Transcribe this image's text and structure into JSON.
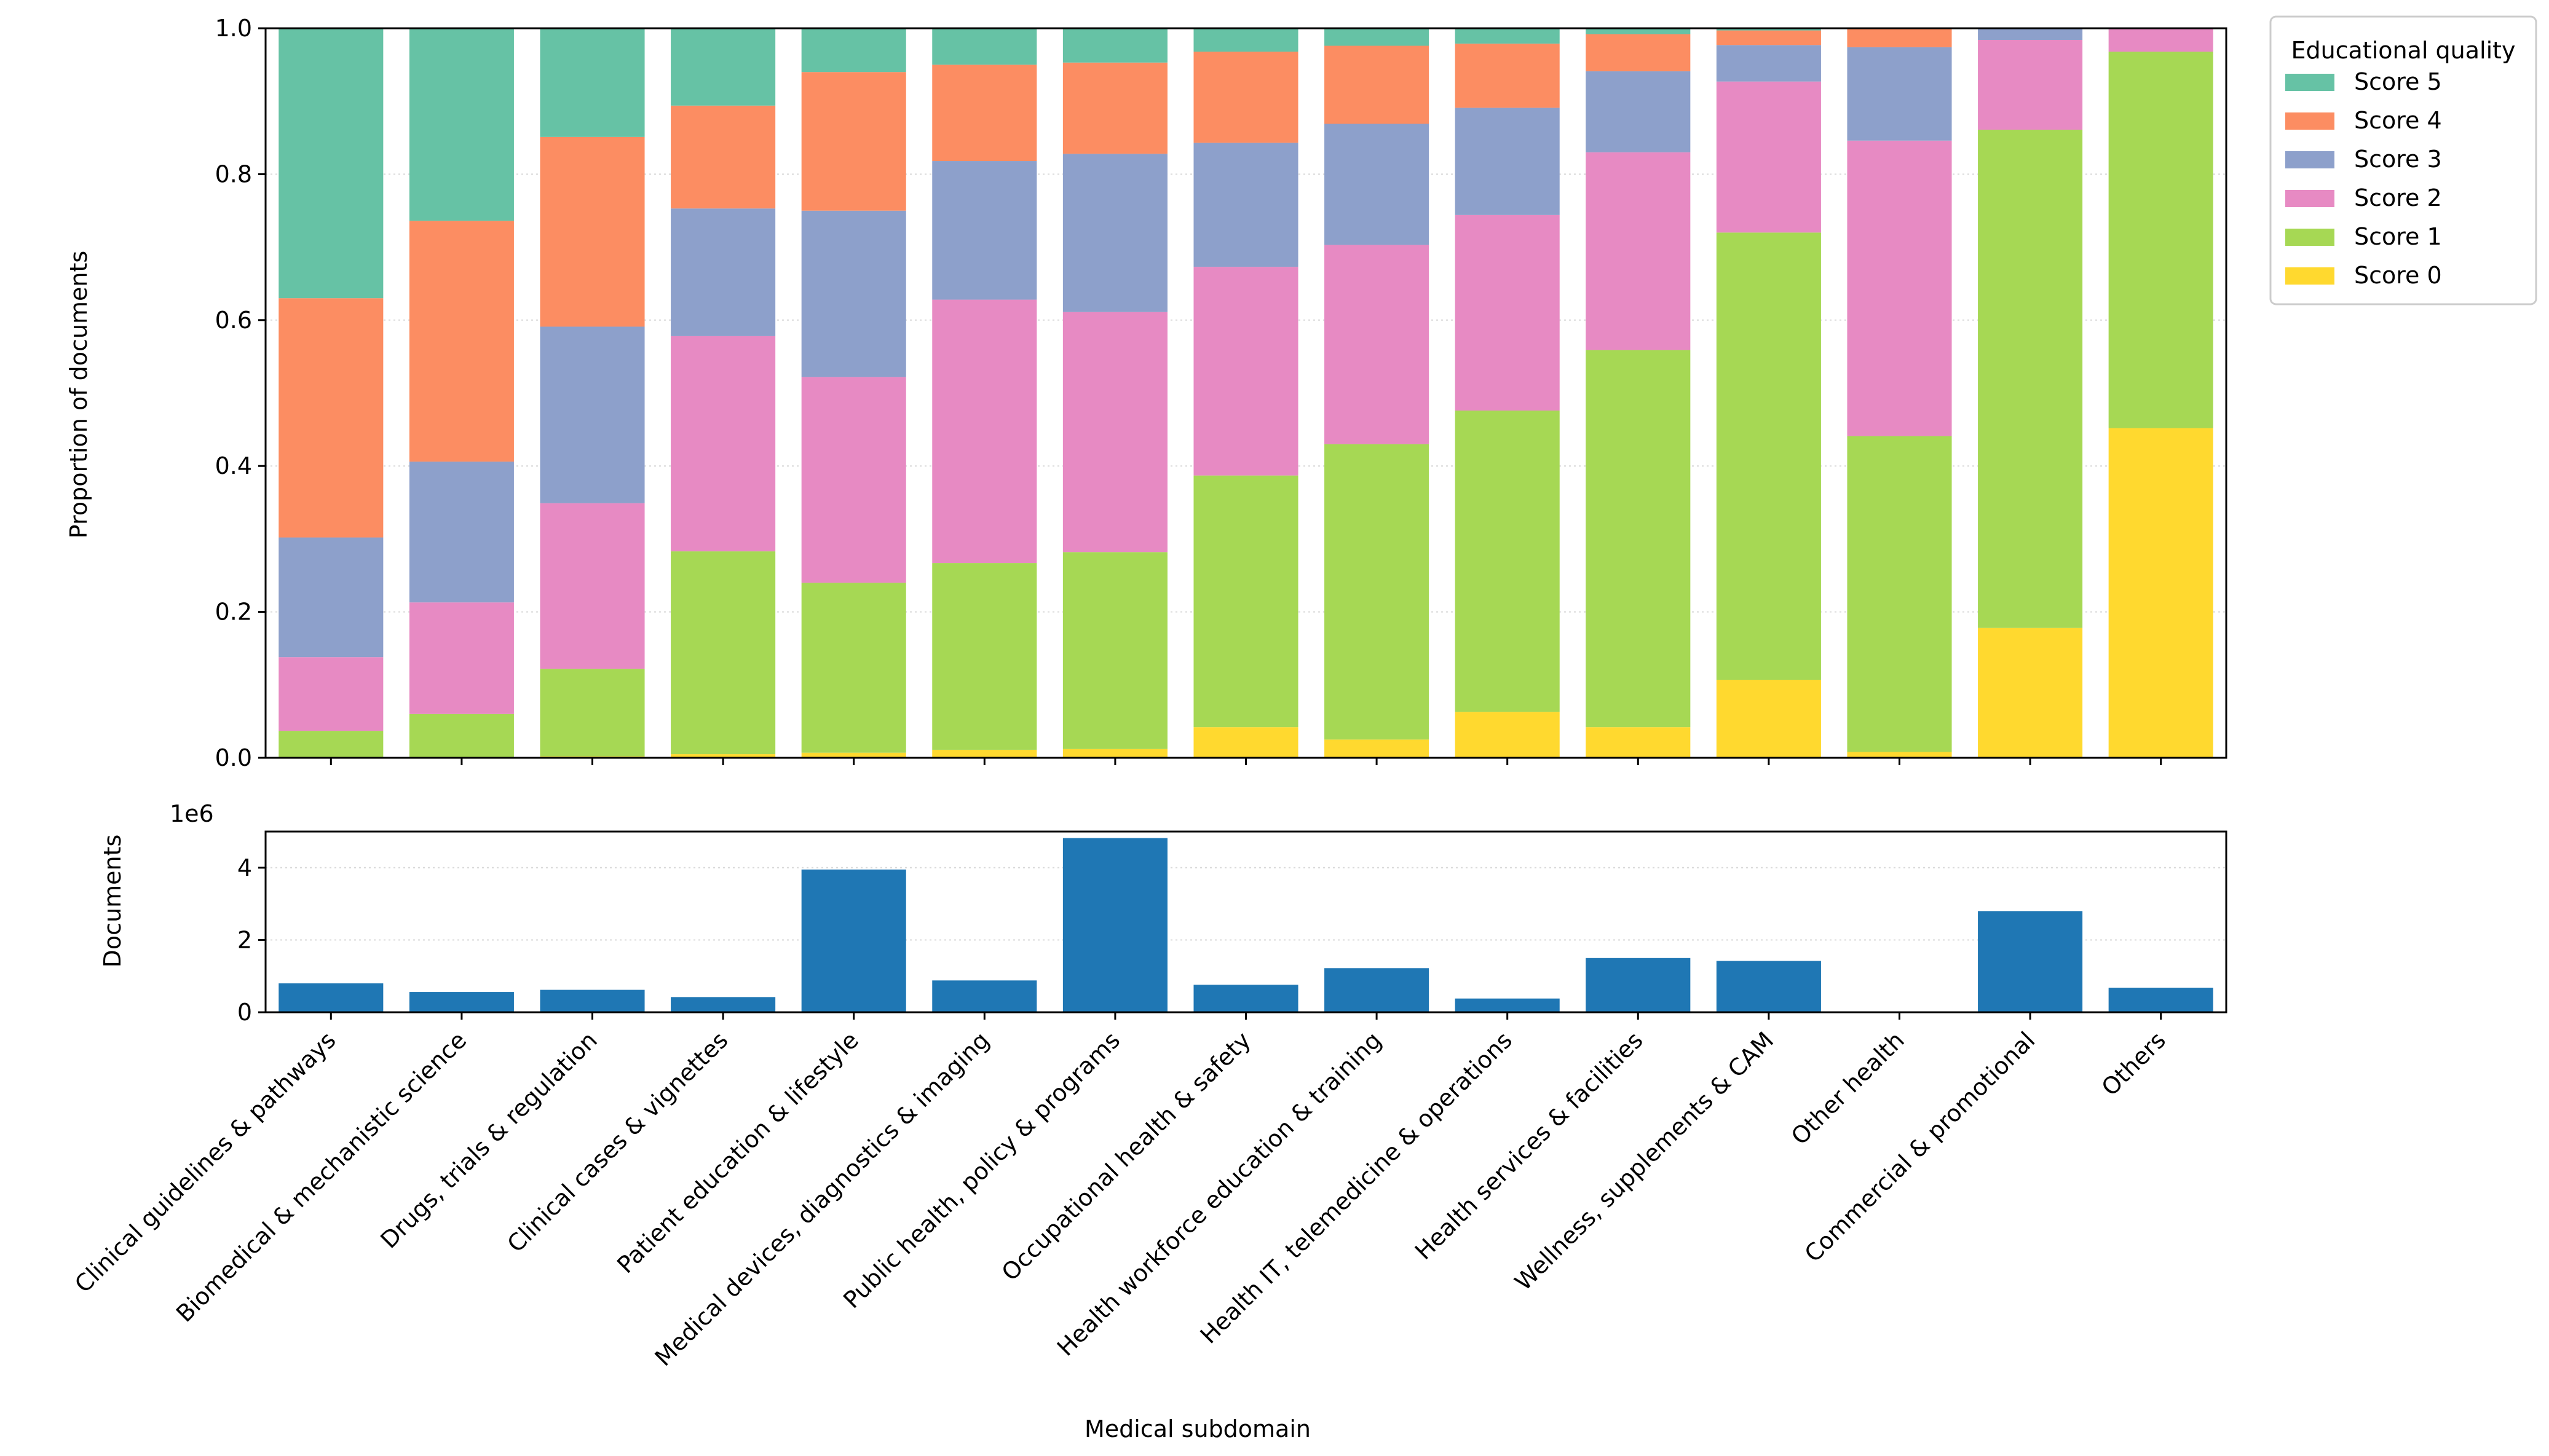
{
  "chart_data": [
    {
      "type": "bar",
      "stacked": true,
      "categories": [
        "Clinical guidelines & pathways",
        "Biomedical & mechanistic science",
        "Drugs, trials & regulation",
        "Clinical cases & vignettes",
        "Patient education & lifestyle",
        "Medical devices, diagnostics & imaging",
        "Public health, policy & programs",
        "Occupational health & safety",
        "Health workforce education & training",
        "Health IT, telemedicine & operations",
        "Health services & facilities",
        "Wellness, supplements & CAM",
        "Other health",
        "Commercial & promotional",
        "Others"
      ],
      "series": [
        {
          "name": "Score 0",
          "color": "#ffd92f",
          "values": [
            0.0,
            0.0,
            0.002,
            0.005,
            0.007,
            0.011,
            0.012,
            0.042,
            0.025,
            0.063,
            0.042,
            0.107,
            0.008,
            0.178,
            0.452
          ]
        },
        {
          "name": "Score 1",
          "color": "#a6d854",
          "values": [
            0.037,
            0.06,
            0.12,
            0.278,
            0.233,
            0.256,
            0.27,
            0.345,
            0.405,
            0.413,
            0.517,
            0.613,
            0.433,
            0.683,
            0.516
          ]
        },
        {
          "name": "Score 2",
          "color": "#e78ac3",
          "values": [
            0.101,
            0.153,
            0.227,
            0.295,
            0.282,
            0.361,
            0.329,
            0.286,
            0.273,
            0.268,
            0.271,
            0.207,
            0.405,
            0.123,
            0.031
          ]
        },
        {
          "name": "Score 3",
          "color": "#8da0cb",
          "values": [
            0.164,
            0.193,
            0.242,
            0.175,
            0.228,
            0.19,
            0.217,
            0.17,
            0.166,
            0.147,
            0.111,
            0.05,
            0.128,
            0.015,
            0.001
          ]
        },
        {
          "name": "Score 4",
          "color": "#fc8d62",
          "values": [
            0.328,
            0.33,
            0.26,
            0.141,
            0.19,
            0.132,
            0.125,
            0.125,
            0.107,
            0.088,
            0.051,
            0.02,
            0.026,
            0.001,
            0.0
          ]
        },
        {
          "name": "Score 5",
          "color": "#66c2a5",
          "values": [
            0.37,
            0.264,
            0.149,
            0.106,
            0.06,
            0.05,
            0.047,
            0.032,
            0.024,
            0.021,
            0.008,
            0.003,
            0.0,
            0.0,
            0.0
          ]
        }
      ],
      "ylabel": "Proportion of documents",
      "ylim": [
        0,
        1.0
      ],
      "yticks": [
        "0.0",
        "0.2",
        "0.4",
        "0.6",
        "0.8",
        "1.0"
      ],
      "legend_title": "Educational quality",
      "legend_entries": [
        "Score 5",
        "Score 4",
        "Score 3",
        "Score 2",
        "Score 1",
        "Score 0"
      ],
      "legend_position": "outside-right-top",
      "grid": "horizontal-dotted"
    },
    {
      "type": "bar",
      "categories": [
        "Clinical guidelines & pathways",
        "Biomedical & mechanistic science",
        "Drugs, trials & regulation",
        "Clinical cases & vignettes",
        "Patient education & lifestyle",
        "Medical devices, diagnostics & imaging",
        "Public health, policy & programs",
        "Occupational health & safety",
        "Health workforce education & training",
        "Health IT, telemedicine & operations",
        "Health services & facilities",
        "Wellness, supplements & CAM",
        "Other health",
        "Commercial & promotional",
        "Others"
      ],
      "values": [
        800000,
        560000,
        620000,
        420000,
        3950000,
        880000,
        4820000,
        760000,
        1220000,
        380000,
        1500000,
        1420000,
        0,
        2800000,
        680000
      ],
      "color": "#1f77b4",
      "ylabel": "Documents",
      "offset_label": "1e6",
      "ylim": [
        0,
        5000000
      ],
      "yticks": [
        "0",
        "2",
        "4"
      ],
      "xlabel": "Medical subdomain",
      "grid": "horizontal-dotted"
    }
  ]
}
